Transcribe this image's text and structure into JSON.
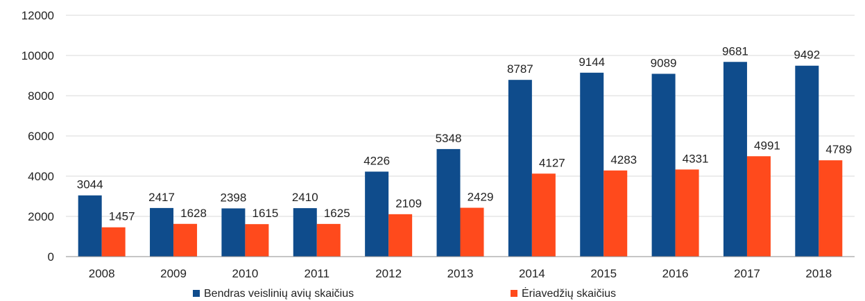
{
  "chart_data": {
    "type": "bar",
    "categories": [
      "2008",
      "2009",
      "2010",
      "2011",
      "2012",
      "2013",
      "2014",
      "2015",
      "2016",
      "2017",
      "2018"
    ],
    "series": [
      {
        "name": "Bendras veislinių avių skaičius",
        "color": "#0f4c8c",
        "values": [
          3044,
          2417,
          2398,
          2410,
          4226,
          5348,
          8787,
          9144,
          9089,
          9681,
          9492
        ]
      },
      {
        "name": "Ėriavedžių skaičius",
        "color": "#ff4a1c",
        "values": [
          1457,
          1628,
          1615,
          1625,
          2109,
          2429,
          4127,
          4283,
          4331,
          4991,
          4789
        ]
      }
    ],
    "ylim": [
      0,
      12000
    ],
    "yticks": [
      0,
      2000,
      4000,
      6000,
      8000,
      10000,
      12000
    ],
    "grid": true,
    "legend": "bottom"
  }
}
